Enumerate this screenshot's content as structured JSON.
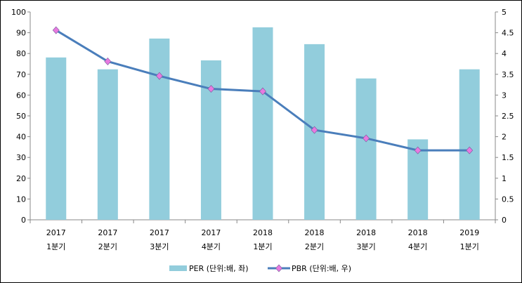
{
  "chart_data": {
    "type": "bar+line",
    "categories": [
      [
        "2017",
        "1분기"
      ],
      [
        "2017",
        "2분기"
      ],
      [
        "2017",
        "3분기"
      ],
      [
        "2017",
        "4분기"
      ],
      [
        "2018",
        "1분기"
      ],
      [
        "2018",
        "2분기"
      ],
      [
        "2018",
        "3분기"
      ],
      [
        "2018",
        "4분기"
      ],
      [
        "2019",
        "1분기"
      ]
    ],
    "series": [
      {
        "name": "PER (단위:배, 좌)",
        "type": "bar",
        "axis": "left",
        "color": "#92CDDC",
        "values": [
          78.1,
          72.4,
          87.2,
          76.7,
          92.6,
          84.5,
          68.0,
          38.7,
          72.4
        ]
      },
      {
        "name": "PBR (단위:배, 우)",
        "type": "line",
        "axis": "right",
        "color": "#4A7EBB",
        "marker_color": "#E879E0",
        "values": [
          4.56,
          3.81,
          3.46,
          3.15,
          3.09,
          2.16,
          1.96,
          1.67,
          1.67
        ]
      }
    ],
    "left_axis": {
      "min": 0,
      "max": 100,
      "ticks": [
        "0",
        "10",
        "20",
        "30",
        "40",
        "50",
        "60",
        "70",
        "80",
        "90",
        "100"
      ]
    },
    "right_axis": {
      "min": 0,
      "max": 5,
      "ticks": [
        "0",
        "0.5",
        "1",
        "1.5",
        "2",
        "2.5",
        "3",
        "3.5",
        "4",
        "4.5",
        "5"
      ]
    },
    "legend": "bottom",
    "grid": false
  }
}
